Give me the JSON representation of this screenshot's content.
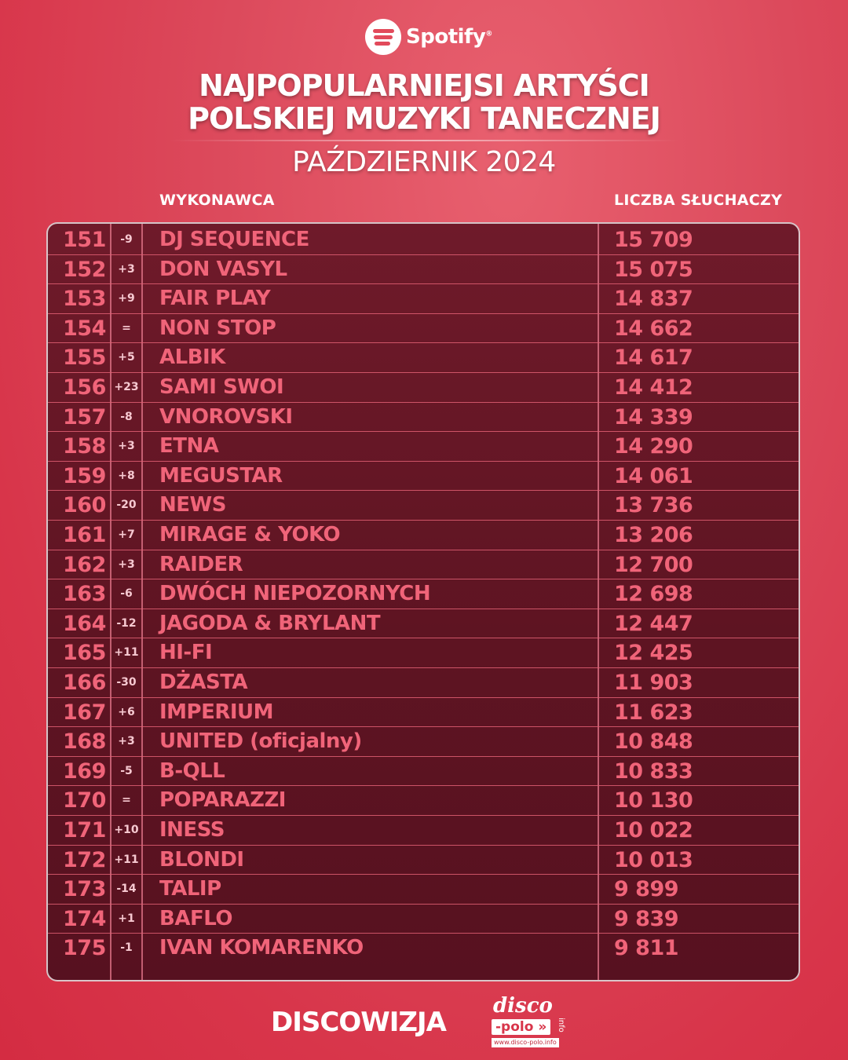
{
  "header": {
    "logo_text": "Spotify",
    "title_line1": "NAJPOPULARNIEJSI ARTYŚCI",
    "title_line2": "POLSKIEJ MUZYKI TANECZNEJ",
    "subtitle": "PAŹDZIERNIK 2024"
  },
  "columns": {
    "artist": "WYKONAWCA",
    "listeners": "LICZBA SŁUCHACZY"
  },
  "rows": [
    {
      "rank": "151",
      "change": "-9",
      "name": "DJ SEQUENCE",
      "listeners": "15 709"
    },
    {
      "rank": "152",
      "change": "+3",
      "name": "DON VASYL",
      "listeners": "15 075"
    },
    {
      "rank": "153",
      "change": "+9",
      "name": "FAIR PLAY",
      "listeners": "14 837"
    },
    {
      "rank": "154",
      "change": "=",
      "name": "NON STOP",
      "listeners": "14 662"
    },
    {
      "rank": "155",
      "change": "+5",
      "name": "ALBIK",
      "listeners": "14 617"
    },
    {
      "rank": "156",
      "change": "+23",
      "name": "SAMI SWOI",
      "listeners": "14 412"
    },
    {
      "rank": "157",
      "change": "-8",
      "name": "VNOROVSKI",
      "listeners": "14 339"
    },
    {
      "rank": "158",
      "change": "+3",
      "name": "ETNA",
      "listeners": "14 290"
    },
    {
      "rank": "159",
      "change": "+8",
      "name": "MEGUSTAR",
      "listeners": "14 061"
    },
    {
      "rank": "160",
      "change": "-20",
      "name": "NEWS",
      "listeners": "13 736"
    },
    {
      "rank": "161",
      "change": "+7",
      "name": "MIRAGE & YOKO",
      "listeners": "13 206"
    },
    {
      "rank": "162",
      "change": "+3",
      "name": "RAIDER",
      "listeners": "12 700"
    },
    {
      "rank": "163",
      "change": "-6",
      "name": "DWÓCH NIEPOZORNYCH",
      "listeners": "12 698"
    },
    {
      "rank": "164",
      "change": "-12",
      "name": "JAGODA & BRYLANT",
      "listeners": "12 447"
    },
    {
      "rank": "165",
      "change": "+11",
      "name": "HI-FI",
      "listeners": "12 425"
    },
    {
      "rank": "166",
      "change": "-30",
      "name": "DŻASTA",
      "listeners": "11 903"
    },
    {
      "rank": "167",
      "change": "+6",
      "name": "IMPERIUM",
      "listeners": "11 623"
    },
    {
      "rank": "168",
      "change": "+3",
      "name": "UNITED (oficjalny)",
      "listeners": "10 848"
    },
    {
      "rank": "169",
      "change": "-5",
      "name": "B-QLL",
      "listeners": "10 833"
    },
    {
      "rank": "170",
      "change": "=",
      "name": "POPARAZZI",
      "listeners": "10 130"
    },
    {
      "rank": "171",
      "change": "+10",
      "name": "INESS",
      "listeners": "10 022"
    },
    {
      "rank": "172",
      "change": "+11",
      "name": "BLONDI",
      "listeners": "10 013"
    },
    {
      "rank": "173",
      "change": "-14",
      "name": "TALIP",
      "listeners": "9 899"
    },
    {
      "rank": "174",
      "change": "+1",
      "name": "BAFLO",
      "listeners": "9 839"
    },
    {
      "rank": "175",
      "change": "-1",
      "name": "IVAN KOMARENKO",
      "listeners": "9 811"
    }
  ],
  "footer": {
    "brand": "DISCOWIZJA",
    "logo_disco": "disco",
    "logo_polo": "-polo",
    "logo_info": "info",
    "logo_url": "www.disco-polo.info"
  },
  "colors": {
    "background": "#dc4a5c",
    "table": "#5e1422",
    "accent_text": "#f06479"
  }
}
